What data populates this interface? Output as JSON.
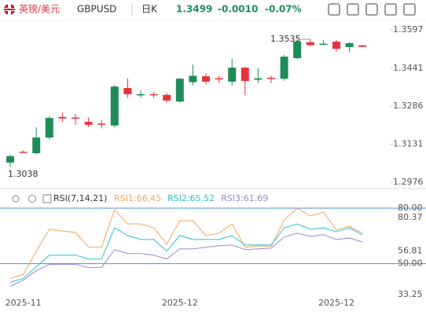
{
  "header": {
    "name": "英镑/美元",
    "symbol": "GBPUSD",
    "period": "日K",
    "price": "1.3499",
    "change": "-0.0010",
    "change_pct": "-0.07%"
  },
  "chart_data": [
    {
      "type": "candlestick",
      "open": [
        1.3056,
        1.31,
        1.3094,
        1.3158,
        1.3242,
        1.324,
        1.3222,
        1.3215,
        1.3207,
        1.336,
        1.333,
        1.3335,
        1.3332,
        1.3305,
        1.3384,
        1.3408,
        1.34,
        1.3386,
        1.3443,
        1.3394,
        1.3402,
        1.3398,
        1.3482,
        1.3547,
        1.3538,
        1.3549,
        1.3527,
        1.3534
      ],
      "high": [
        1.3088,
        1.3105,
        1.32,
        1.3245,
        1.326,
        1.3255,
        1.324,
        1.323,
        1.3372,
        1.34,
        1.335,
        1.3345,
        1.334,
        1.34,
        1.3455,
        1.342,
        1.341,
        1.348,
        1.3448,
        1.344,
        1.341,
        1.3495,
        1.356,
        1.356,
        1.3555,
        1.3556,
        1.3548,
        1.3536
      ],
      "low": [
        1.3038,
        1.3095,
        1.309,
        1.315,
        1.3222,
        1.321,
        1.32,
        1.3195,
        1.32,
        1.332,
        1.332,
        1.332,
        1.33,
        1.33,
        1.337,
        1.3375,
        1.338,
        1.337,
        1.333,
        1.338,
        1.338,
        1.339,
        1.3478,
        1.353,
        1.3535,
        1.351,
        1.3505,
        1.3527
      ],
      "close": [
        1.3082,
        1.3098,
        1.3158,
        1.3238,
        1.3236,
        1.3235,
        1.321,
        1.3212,
        1.3366,
        1.3335,
        1.3335,
        1.3332,
        1.3309,
        1.3398,
        1.341,
        1.3386,
        1.3397,
        1.3443,
        1.3389,
        1.34,
        1.3398,
        1.3488,
        1.355,
        1.3535,
        1.3541,
        1.352,
        1.3543,
        1.3528
      ],
      "up_color": "#1e8c57",
      "down_color": "#e8323c",
      "ylim": [
        1.295,
        1.3639
      ],
      "yticks": [
        1.3597,
        1.3441,
        1.3286,
        1.3131,
        1.2976
      ],
      "annotations": [
        "1.3535",
        "1.3038"
      ]
    },
    {
      "type": "line",
      "title": "RSI(7,14,21)",
      "categories": [
        null,
        "2025-11",
        null,
        null,
        null,
        null,
        null,
        null,
        null,
        null,
        null,
        null,
        null,
        "2025-12",
        null,
        null,
        null,
        null,
        null,
        null,
        null,
        null,
        null,
        null,
        null,
        "2025-12",
        null,
        null
      ],
      "series": [
        {
          "name": "RSI1:66.45",
          "color": "#f5a55b",
          "values": [
            42.0,
            44.1,
            56.8,
            68.6,
            67.7,
            66.9,
            58.9,
            58.9,
            79.2,
            71.5,
            71.5,
            69.4,
            60.6,
            73.2,
            73.2,
            65.2,
            66.5,
            71.5,
            58.9,
            59.7,
            59.3,
            73.7,
            80.0,
            75.8,
            77.9,
            68.2,
            70.3,
            66.45
          ]
        },
        {
          "name": "RSI2:65.52",
          "color": "#2bbfd6",
          "values": [
            39.9,
            42.0,
            48.3,
            54.6,
            54.6,
            54.6,
            52.5,
            52.5,
            69.4,
            65.2,
            63.1,
            63.1,
            56.8,
            65.2,
            63.1,
            63.1,
            63.1,
            65.2,
            60.1,
            60.1,
            60.1,
            69.4,
            71.5,
            68.6,
            69.4,
            67.3,
            69.4,
            65.52
          ]
        },
        {
          "name": "RSI3:61.69",
          "color": "#9b86d6",
          "values": [
            37.7,
            41.1,
            46.2,
            49.6,
            49.6,
            49.6,
            47.9,
            47.9,
            57.6,
            55.5,
            55.5,
            54.6,
            52.5,
            58.0,
            58.0,
            58.9,
            59.7,
            60.1,
            57.6,
            58.0,
            58.4,
            64.4,
            66.5,
            64.8,
            65.7,
            63.1,
            63.9,
            61.69
          ]
        }
      ],
      "hlines": [
        80,
        50
      ],
      "hline_color": "#4a90e2",
      "ylim": [
        32,
        83
      ],
      "yticks": [
        {
          "value": 80,
          "label": "80.00"
        },
        {
          "value": 80.37,
          "label": "80.37"
        },
        56.81,
        {
          "value": 50,
          "label": "50.00"
        },
        33.25
      ]
    }
  ]
}
